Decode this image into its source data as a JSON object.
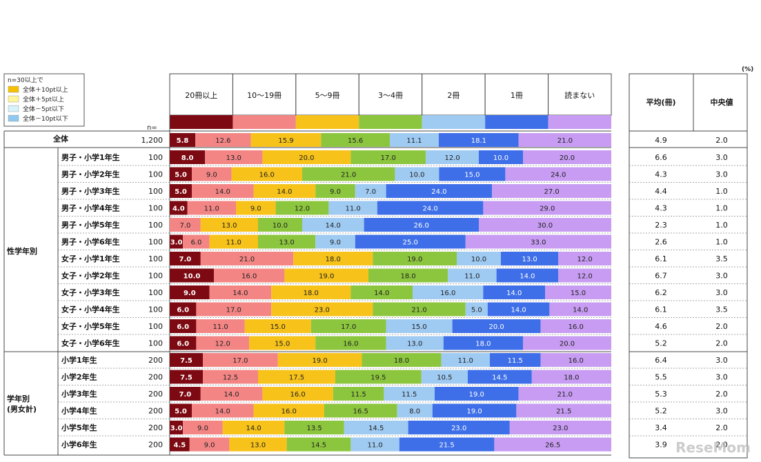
{
  "legend": {
    "title": "n=30以上で",
    "items": [
      {
        "label": "全体＋10pt以上",
        "color": "#f5c000"
      },
      {
        "label": "全体＋5pt以上",
        "color": "#fff59a"
      },
      {
        "label": "全体－5pt以下",
        "color": "#d6f2fb"
      },
      {
        "label": "全体－10pt以下",
        "color": "#8fc8f0"
      }
    ]
  },
  "n_label": "n=",
  "unit_label": "(%)",
  "stats_headers": [
    "平均(冊)",
    "中央値"
  ],
  "group_labels": [
    "全体",
    "性学年別",
    "学年別\n(男女計)"
  ],
  "chart_data": {
    "type": "bar",
    "stacked": true,
    "orientation": "horizontal",
    "categories": [
      "全体",
      "男子・小学1年生",
      "男子・小学2年生",
      "男子・小学3年生",
      "男子・小学4年生",
      "男子・小学5年生",
      "男子・小学6年生",
      "女子・小学1年生",
      "女子・小学2年生",
      "女子・小学3年生",
      "女子・小学4年生",
      "女子・小学5年生",
      "女子・小学6年生",
      "小学1年生",
      "小学2年生",
      "小学3年生",
      "小学4年生",
      "小学5年生",
      "小学6年生"
    ],
    "n": [
      "1,200",
      "100",
      "100",
      "100",
      "100",
      "100",
      "100",
      "100",
      "100",
      "100",
      "100",
      "100",
      "100",
      "200",
      "200",
      "200",
      "200",
      "200",
      "200"
    ],
    "series": [
      {
        "name": "20冊以上",
        "color": "#7d0a12",
        "values": [
          5.8,
          8.0,
          5.0,
          5.0,
          4.0,
          0,
          3.0,
          7.0,
          10.0,
          9.0,
          6.0,
          6.0,
          6.0,
          7.5,
          7.5,
          7.0,
          5.0,
          3.0,
          4.5
        ]
      },
      {
        "name": "10～19冊",
        "color": "#f38585",
        "values": [
          12.6,
          13.0,
          9.0,
          14.0,
          11.0,
          7.0,
          6.0,
          21.0,
          16.0,
          14.0,
          17.0,
          11.0,
          12.0,
          17.0,
          12.5,
          14.0,
          14.0,
          9.0,
          9.0
        ]
      },
      {
        "name": "5～9冊",
        "color": "#f7c21a",
        "values": [
          15.9,
          20.0,
          16.0,
          14.0,
          9.0,
          13.0,
          11.0,
          18.0,
          19.0,
          18.0,
          23.0,
          15.0,
          15.0,
          19.0,
          17.5,
          16.0,
          16.0,
          14.0,
          13.0
        ]
      },
      {
        "name": "3～4冊",
        "color": "#8cc63e",
        "values": [
          15.6,
          17.0,
          21.0,
          9.0,
          12.0,
          10.0,
          13.0,
          19.0,
          18.0,
          14.0,
          21.0,
          17.0,
          16.0,
          18.0,
          19.5,
          11.5,
          16.5,
          13.5,
          14.5
        ]
      },
      {
        "name": "2冊",
        "color": "#9fcaf2",
        "values": [
          11.1,
          12.0,
          10.0,
          7.0,
          11.0,
          14.0,
          9.0,
          10.0,
          11.0,
          16.0,
          5.0,
          15.0,
          13.0,
          11.0,
          10.5,
          11.5,
          8.0,
          14.5,
          11.0
        ]
      },
      {
        "name": "1冊",
        "color": "#3e6fe8",
        "values": [
          18.1,
          10.0,
          15.0,
          24.0,
          24.0,
          26.0,
          25.0,
          13.0,
          14.0,
          14.0,
          14.0,
          20.0,
          18.0,
          11.5,
          14.5,
          19.0,
          19.0,
          23.0,
          21.5
        ]
      },
      {
        "name": "読まない",
        "color": "#c79cf2",
        "values": [
          21.0,
          20.0,
          24.0,
          27.0,
          29.0,
          30.0,
          33.0,
          12.0,
          12.0,
          15.0,
          14.0,
          16.0,
          20.0,
          16.0,
          18.0,
          21.0,
          21.5,
          23.0,
          26.5
        ]
      }
    ],
    "averages": [
      "4.9",
      "6.6",
      "4.3",
      "4.4",
      "4.3",
      "2.3",
      "2.6",
      "6.1",
      "6.7",
      "6.2",
      "6.1",
      "4.6",
      "5.2",
      "6.4",
      "5.5",
      "5.3",
      "5.2",
      "3.4",
      "3.9"
    ],
    "medians": [
      "2.0",
      "3.0",
      "3.0",
      "1.0",
      "1.0",
      "1.0",
      "1.0",
      "3.5",
      "3.0",
      "3.0",
      "3.5",
      "2.0",
      "2.0",
      "3.0",
      "3.0",
      "2.0",
      "3.0",
      "2.0",
      "2.0"
    ],
    "xlim": [
      0,
      100
    ]
  },
  "watermark": "ReseMom"
}
